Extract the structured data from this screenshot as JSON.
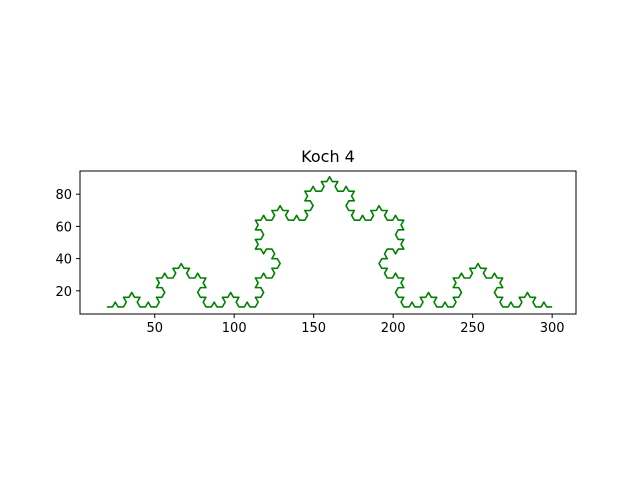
{
  "chart_data": {
    "type": "line",
    "title": "Koch 4",
    "xlabel": "",
    "ylabel": "",
    "xlim": [
      3.0,
      315.0
    ],
    "ylim": [
      5.6,
      94.4
    ],
    "xticks": [
      50,
      100,
      150,
      200,
      250,
      300
    ],
    "xtick_labels": [
      "50",
      "100",
      "150",
      "200",
      "250",
      "300"
    ],
    "yticks": [
      20,
      40,
      60,
      80
    ],
    "ytick_labels": [
      "20",
      "40",
      "60",
      "80"
    ],
    "grid": false,
    "legend": "none",
    "series_color": "#008000",
    "curve": {
      "kind": "koch",
      "order": 4,
      "start": [
        20,
        10
      ],
      "end": [
        300,
        10
      ]
    }
  }
}
